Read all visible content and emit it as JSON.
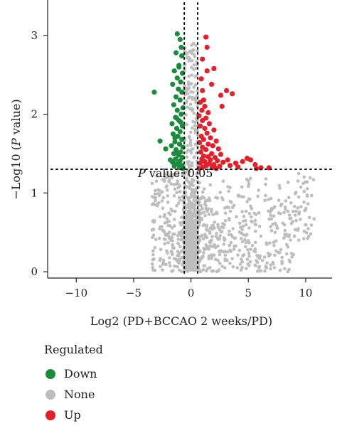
{
  "chart_data": {
    "type": "scatter",
    "title": "",
    "xlabel": "Log2 (PD+BCCAO 2 weeks/PD)",
    "ylabel_prefix": "−Log10 (",
    "ylabel_italic": "P",
    "ylabel_suffix": " value)",
    "xlim": [
      -12.5,
      12.3
    ],
    "ylim": [
      -0.08,
      3.45
    ],
    "xticks": [
      -10,
      -5,
      0,
      5,
      10
    ],
    "xtick_labels": [
      "−10",
      "−5",
      "0",
      "5",
      "10"
    ],
    "yticks": [
      0,
      1,
      2,
      3
    ],
    "ytick_labels": [
      "0",
      "1",
      "2",
      "3"
    ],
    "thresholds": {
      "x": [
        -0.585,
        0.585
      ],
      "y": 1.301
    },
    "annotation_italic": "P",
    "annotation_rest": " value: 0.05",
    "grid": false,
    "legend_position": "bottom-left",
    "colors": {
      "Down": "#1b8a3d",
      "None": "#bdbdbd",
      "Up": "#e0202a"
    },
    "series": [
      {
        "name": "Down",
        "points": [
          [
            -0.95,
            2.95
          ],
          [
            -1.3,
            2.78
          ],
          [
            -0.8,
            2.74
          ],
          [
            -1.05,
            2.62
          ],
          [
            -1.45,
            2.55
          ],
          [
            -0.75,
            2.52
          ],
          [
            -1.2,
            2.46
          ],
          [
            -0.9,
            2.41
          ],
          [
            -1.6,
            2.38
          ],
          [
            -1.1,
            2.32
          ],
          [
            -0.8,
            2.28
          ],
          [
            -1.3,
            2.22
          ],
          [
            -0.95,
            2.18
          ],
          [
            -1.5,
            2.12
          ],
          [
            -0.7,
            2.08
          ],
          [
            -1.2,
            2.05
          ],
          [
            -3.2,
            2.28
          ],
          [
            -0.85,
            2.0
          ],
          [
            -1.35,
            1.96
          ],
          [
            -1.05,
            1.92
          ],
          [
            -1.65,
            1.88
          ],
          [
            -0.75,
            1.85
          ],
          [
            -1.25,
            1.82
          ],
          [
            -0.95,
            1.78
          ],
          [
            -1.55,
            1.75
          ],
          [
            -1.15,
            1.72
          ],
          [
            -0.8,
            1.68
          ],
          [
            -1.4,
            1.65
          ],
          [
            -2.7,
            1.66
          ],
          [
            -1.0,
            1.62
          ],
          [
            -1.7,
            1.6
          ],
          [
            -0.7,
            1.58
          ],
          [
            -1.3,
            1.55
          ],
          [
            -2.2,
            1.56
          ],
          [
            -0.9,
            1.52
          ],
          [
            -1.5,
            1.5
          ],
          [
            -1.1,
            1.48
          ],
          [
            -0.75,
            1.45
          ],
          [
            -1.35,
            1.43
          ],
          [
            -0.95,
            1.41
          ],
          [
            -1.6,
            1.39
          ],
          [
            -1.2,
            1.37
          ],
          [
            -0.8,
            1.35
          ],
          [
            -1.45,
            1.34
          ],
          [
            -1.0,
            1.32
          ],
          [
            -0.7,
            1.31
          ],
          [
            -1.8,
            1.42
          ],
          [
            -1.25,
            1.95
          ],
          [
            -1.05,
            2.6
          ],
          [
            -1.2,
            3.02
          ],
          [
            -0.85,
            2.85
          ],
          [
            -1.4,
            1.7
          ],
          [
            -0.9,
            1.9
          ],
          [
            -1.15,
            1.5
          ]
        ]
      },
      {
        "name": "Up",
        "points": [
          [
            1.3,
            2.98
          ],
          [
            1.4,
            2.85
          ],
          [
            2.0,
            2.58
          ],
          [
            1.8,
            2.38
          ],
          [
            0.9,
            2.45
          ],
          [
            1.0,
            2.3
          ],
          [
            2.6,
            2.24
          ],
          [
            1.1,
            2.18
          ],
          [
            0.8,
            2.15
          ],
          [
            1.2,
            2.1
          ],
          [
            0.95,
            2.05
          ],
          [
            1.5,
            2.02
          ],
          [
            0.7,
            1.98
          ],
          [
            1.3,
            1.95
          ],
          [
            1.0,
            1.92
          ],
          [
            1.6,
            1.88
          ],
          [
            0.8,
            1.85
          ],
          [
            1.2,
            1.82
          ],
          [
            2.0,
            1.8
          ],
          [
            1.4,
            1.76
          ],
          [
            0.9,
            1.72
          ],
          [
            1.7,
            1.7
          ],
          [
            1.1,
            1.68
          ],
          [
            2.2,
            1.66
          ],
          [
            0.75,
            1.64
          ],
          [
            1.5,
            1.62
          ],
          [
            1.9,
            1.6
          ],
          [
            1.0,
            1.58
          ],
          [
            2.4,
            1.56
          ],
          [
            1.3,
            1.55
          ],
          [
            0.85,
            1.52
          ],
          [
            1.8,
            1.5
          ],
          [
            2.6,
            1.49
          ],
          [
            1.1,
            1.47
          ],
          [
            1.5,
            1.46
          ],
          [
            2.1,
            1.45
          ],
          [
            0.95,
            1.43
          ],
          [
            1.7,
            1.42
          ],
          [
            2.3,
            1.41
          ],
          [
            1.2,
            1.4
          ],
          [
            2.8,
            1.39
          ],
          [
            0.8,
            1.38
          ],
          [
            1.6,
            1.37
          ],
          [
            2.0,
            1.36
          ],
          [
            1.35,
            1.35
          ],
          [
            2.5,
            1.34
          ],
          [
            1.05,
            1.33
          ],
          [
            1.85,
            1.32
          ],
          [
            0.7,
            1.31
          ],
          [
            2.2,
            1.31
          ],
          [
            3.2,
            1.42
          ],
          [
            3.9,
            1.38
          ],
          [
            4.5,
            1.4
          ],
          [
            4.9,
            1.44
          ],
          [
            5.6,
            1.36
          ],
          [
            5.7,
            1.31
          ],
          [
            6.1,
            1.32
          ],
          [
            6.8,
            1.32
          ],
          [
            5.2,
            1.42
          ],
          [
            3.1,
            2.3
          ],
          [
            3.6,
            2.26
          ],
          [
            2.7,
            2.1
          ],
          [
            1.4,
            2.55
          ],
          [
            1.0,
            2.7
          ],
          [
            3.4,
            1.35
          ],
          [
            4.1,
            1.33
          ]
        ]
      }
    ]
  },
  "legend": {
    "title": "Regulated",
    "items": [
      {
        "label": "Down",
        "color": "#1b8a3d"
      },
      {
        "label": "None",
        "color": "#bdbdbd"
      },
      {
        "label": "Up",
        "color": "#e0202a"
      }
    ]
  }
}
